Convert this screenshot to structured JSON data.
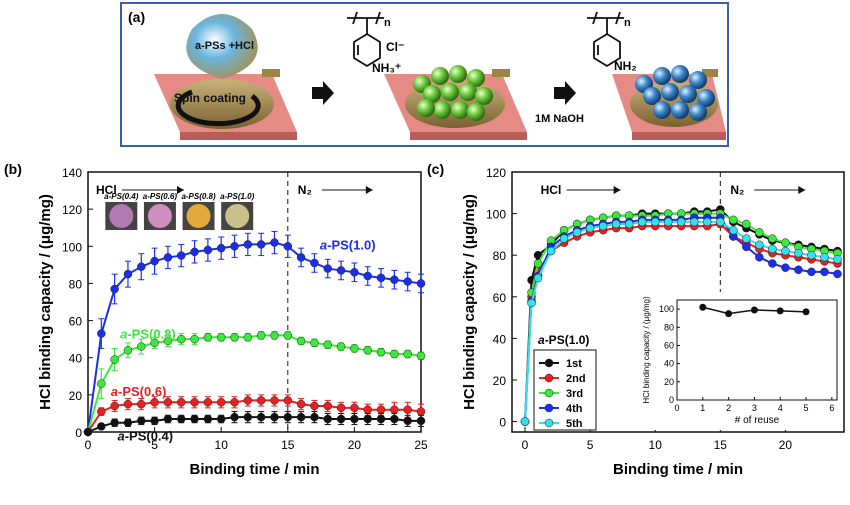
{
  "panel_a": {
    "label": "(a)",
    "droplet_text": "a-PSs +HCl",
    "spin_label": "Spin coating",
    "cl_label": "Cl⁻",
    "nh3_label": "NH₃⁺",
    "n_label": "n",
    "naoh_label": "1M NaOH",
    "n_label_2": "n",
    "nh2_label": "NH₂",
    "colors": {
      "substrate": "#e58a85",
      "green": "#6cc83a",
      "blue": "#3b86c9",
      "drop": "#6ab6e0"
    }
  },
  "chart_data": [
    {
      "panel": "(b)",
      "type": "line",
      "xlabel": "Binding time / min",
      "ylabel": "HCl binding capacity / (μg/mg)",
      "xlim": [
        0,
        25
      ],
      "ylim": [
        0,
        140
      ],
      "xticks": [
        0,
        5,
        10,
        15,
        20,
        25
      ],
      "yticks": [
        0,
        20,
        40,
        60,
        80,
        100,
        120,
        140
      ],
      "annotations": {
        "hcl": "HCl",
        "n2": "N₂",
        "divider_x": 15
      },
      "inset_labels": [
        "a-PS(0.4)",
        "a-PS(0.6)",
        "a-PS(0.8)",
        "a-PS(1.0)"
      ],
      "x": [
        0,
        1,
        2,
        3,
        4,
        5,
        6,
        7,
        8,
        9,
        10,
        11,
        12,
        13,
        14,
        15,
        16,
        17,
        18,
        19,
        20,
        21,
        22,
        23,
        24,
        25
      ],
      "series": [
        {
          "name": "a-PS(1.0)",
          "color": "#1c2ee8",
          "label_x": 19.5,
          "label_y": 101,
          "values": [
            0,
            53,
            77,
            85,
            89,
            92,
            94,
            95,
            97,
            98,
            99,
            100,
            101,
            101,
            102,
            100,
            94,
            91,
            88,
            87,
            86,
            84,
            83,
            82,
            81,
            80
          ],
          "errors": [
            0,
            8,
            8,
            7,
            7,
            7,
            6,
            6,
            6,
            6,
            6,
            6,
            6,
            6,
            6,
            6,
            5,
            5,
            5,
            5,
            5,
            5,
            5,
            5,
            5,
            5
          ]
        },
        {
          "name": "a-PS(0.8)",
          "color": "#3ce83c",
          "label_x": 4.5,
          "label_y": 53,
          "values": [
            0,
            26,
            39,
            44,
            46,
            48,
            49,
            50,
            50,
            51,
            51,
            51,
            51,
            52,
            52,
            52,
            49,
            48,
            47,
            46,
            45,
            44,
            43,
            42,
            42,
            41
          ],
          "errors": [
            0,
            8,
            6,
            4,
            4,
            3,
            3,
            3,
            3,
            2,
            2,
            2,
            2,
            2,
            2,
            2,
            2,
            2,
            2,
            2,
            2,
            2,
            2,
            2,
            2,
            2
          ]
        },
        {
          "name": "a-PS(0.6)",
          "color": "#e82020",
          "label_x": 3.8,
          "label_y": 22,
          "values": [
            0,
            11,
            14,
            15,
            15,
            16,
            16,
            16,
            16,
            16,
            16,
            16,
            17,
            17,
            17,
            17,
            15,
            14,
            14,
            13,
            13,
            12,
            12,
            12,
            12,
            11
          ],
          "errors": [
            0,
            2,
            3,
            3,
            3,
            3,
            3,
            3,
            3,
            3,
            3,
            3,
            3,
            3,
            3,
            3,
            3,
            3,
            3,
            3,
            3,
            3,
            3,
            4,
            4,
            4
          ]
        },
        {
          "name": "a-PS(0.4)",
          "color": "#111111",
          "label_x": 4.3,
          "label_y": -2,
          "values": [
            0,
            3,
            5,
            5,
            6,
            6,
            7,
            7,
            7,
            7,
            7,
            8,
            8,
            8,
            8,
            8,
            8,
            8,
            7,
            7,
            7,
            7,
            7,
            7,
            6,
            6
          ],
          "errors": [
            0,
            1,
            2,
            2,
            2,
            2,
            2,
            2,
            2,
            2,
            2,
            3,
            3,
            3,
            3,
            3,
            3,
            3,
            3,
            3,
            3,
            3,
            3,
            3,
            3,
            3
          ]
        }
      ]
    },
    {
      "panel": "(c)",
      "type": "line",
      "xlabel": "Binding time / min",
      "ylabel": "HCl binding capacity / (μg/mg)",
      "xlim": [
        -1,
        24.5
      ],
      "ylim": [
        -5,
        120
      ],
      "xticks": [
        0,
        5,
        10,
        15,
        20
      ],
      "yticks": [
        0,
        20,
        40,
        60,
        80,
        100,
        120
      ],
      "annotations": {
        "hcl": "HCl",
        "n2": "N₂",
        "divider_x": 15
      },
      "legend_title": "a-PS(1.0)",
      "legend_placement": "lower-left",
      "x": [
        0,
        0.5,
        1,
        2,
        3,
        4,
        5,
        6,
        7,
        8,
        9,
        10,
        11,
        12,
        13,
        14,
        15,
        16,
        17,
        18,
        19,
        20,
        21,
        22,
        23,
        24
      ],
      "series": [
        {
          "name": "1st",
          "color": "#111111",
          "values": [
            0,
            68,
            80,
            85,
            92,
            95,
            97,
            98,
            99,
            99,
            100,
            100,
            100,
            100,
            101,
            101,
            102,
            96,
            93,
            90,
            87,
            86,
            85,
            84,
            83,
            82
          ]
        },
        {
          "name": "2nd",
          "color": "#e82020",
          "values": [
            0,
            60,
            72,
            82,
            86,
            89,
            91,
            92,
            93,
            93,
            94,
            94,
            94,
            94,
            94,
            94,
            95,
            89,
            86,
            83,
            81,
            80,
            79,
            78,
            77,
            76
          ]
        },
        {
          "name": "3rd",
          "color": "#3ce83c",
          "values": [
            0,
            62,
            76,
            87,
            92,
            95,
            97,
            98,
            99,
            99,
            99,
            99,
            100,
            100,
            100,
            100,
            100,
            97,
            95,
            91,
            88,
            86,
            84,
            83,
            82,
            81
          ]
        },
        {
          "name": "4th",
          "color": "#1c2ee8",
          "values": [
            0,
            58,
            70,
            84,
            89,
            92,
            94,
            95,
            96,
            96,
            97,
            97,
            97,
            97,
            98,
            98,
            98,
            89,
            84,
            79,
            76,
            74,
            73,
            72,
            72,
            71
          ]
        },
        {
          "name": "5th",
          "color": "#33e0ee",
          "values": [
            0,
            57,
            69,
            82,
            88,
            91,
            93,
            94,
            95,
            95,
            96,
            96,
            96,
            96,
            96,
            96,
            96,
            92,
            88,
            85,
            83,
            82,
            81,
            80,
            79,
            78
          ]
        }
      ],
      "inset": {
        "type": "line",
        "xlabel": "# of reuse",
        "ylabel": "HCl binding capacity / (μg/mg)",
        "xlim": [
          0,
          6.2
        ],
        "ylim": [
          0,
          110
        ],
        "xticks": [
          0,
          1,
          2,
          3,
          4,
          5,
          6
        ],
        "yticks": [
          0,
          20,
          40,
          60,
          80,
          100
        ],
        "x": [
          1,
          2,
          3,
          4,
          5
        ],
        "values": [
          102,
          95,
          99,
          98,
          97
        ]
      }
    }
  ]
}
